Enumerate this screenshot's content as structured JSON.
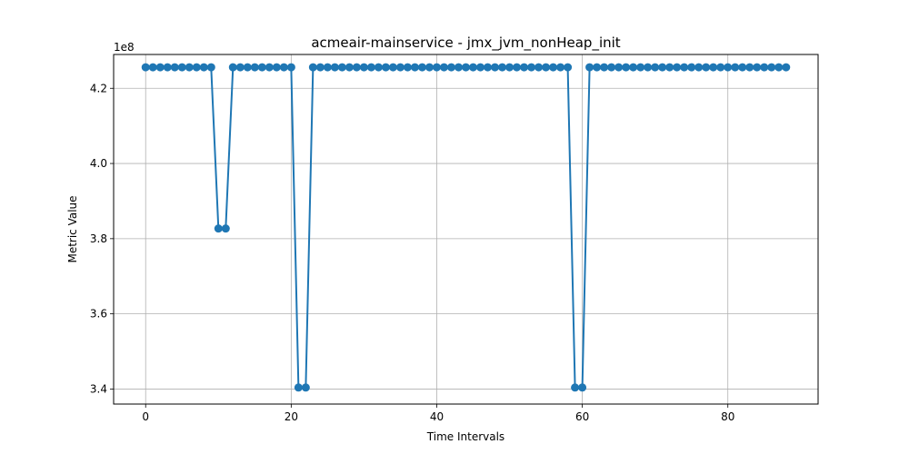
{
  "chart_data": {
    "type": "line",
    "title": "acmeair-mainservice - jmx_jvm_nonHeap_init",
    "xlabel": "Time Intervals",
    "ylabel": "Metric Value",
    "y_offset_label": "1e8",
    "xlim": [
      -4.4,
      92.4
    ],
    "ylim": [
      3.36,
      4.29
    ],
    "x_ticks": [
      0,
      20,
      40,
      60,
      80
    ],
    "y_ticks": [
      3.4,
      3.6,
      3.8,
      4.0,
      4.2
    ],
    "y_tick_labels": [
      "3.4",
      "3.6",
      "3.8",
      "4.0",
      "4.2"
    ],
    "grid": true,
    "markers": true,
    "series": [
      {
        "color": "#1f77b4",
        "x": [
          0,
          1,
          2,
          3,
          4,
          5,
          6,
          7,
          8,
          9,
          10,
          11,
          12,
          13,
          14,
          15,
          16,
          17,
          18,
          19,
          20,
          21,
          22,
          23,
          24,
          25,
          26,
          27,
          28,
          29,
          30,
          31,
          32,
          33,
          34,
          35,
          36,
          37,
          38,
          39,
          40,
          41,
          42,
          43,
          44,
          45,
          46,
          47,
          48,
          49,
          50,
          51,
          52,
          53,
          54,
          55,
          56,
          57,
          58,
          59,
          60,
          61,
          62,
          63,
          64,
          65,
          66,
          67,
          68,
          69,
          70,
          71,
          72,
          73,
          74,
          75,
          76,
          77,
          78,
          79,
          80,
          81,
          82,
          83,
          84,
          85,
          86,
          87,
          88
        ],
        "y": [
          4.256,
          4.256,
          4.256,
          4.256,
          4.256,
          4.256,
          4.256,
          4.256,
          4.256,
          4.256,
          3.827,
          3.827,
          4.256,
          4.256,
          4.256,
          4.256,
          4.256,
          4.256,
          4.256,
          4.256,
          4.256,
          3.404,
          3.404,
          4.256,
          4.256,
          4.256,
          4.256,
          4.256,
          4.256,
          4.256,
          4.256,
          4.256,
          4.256,
          4.256,
          4.256,
          4.256,
          4.256,
          4.256,
          4.256,
          4.256,
          4.256,
          4.256,
          4.256,
          4.256,
          4.256,
          4.256,
          4.256,
          4.256,
          4.256,
          4.256,
          4.256,
          4.256,
          4.256,
          4.256,
          4.256,
          4.256,
          4.256,
          4.256,
          4.256,
          3.404,
          3.404,
          4.256,
          4.256,
          4.256,
          4.256,
          4.256,
          4.256,
          4.256,
          4.256,
          4.256,
          4.256,
          4.256,
          4.256,
          4.256,
          4.256,
          4.256,
          4.256,
          4.256,
          4.256,
          4.256,
          4.256,
          4.256,
          4.256,
          4.256,
          4.256,
          4.256,
          4.256,
          4.256,
          4.256
        ]
      }
    ]
  }
}
